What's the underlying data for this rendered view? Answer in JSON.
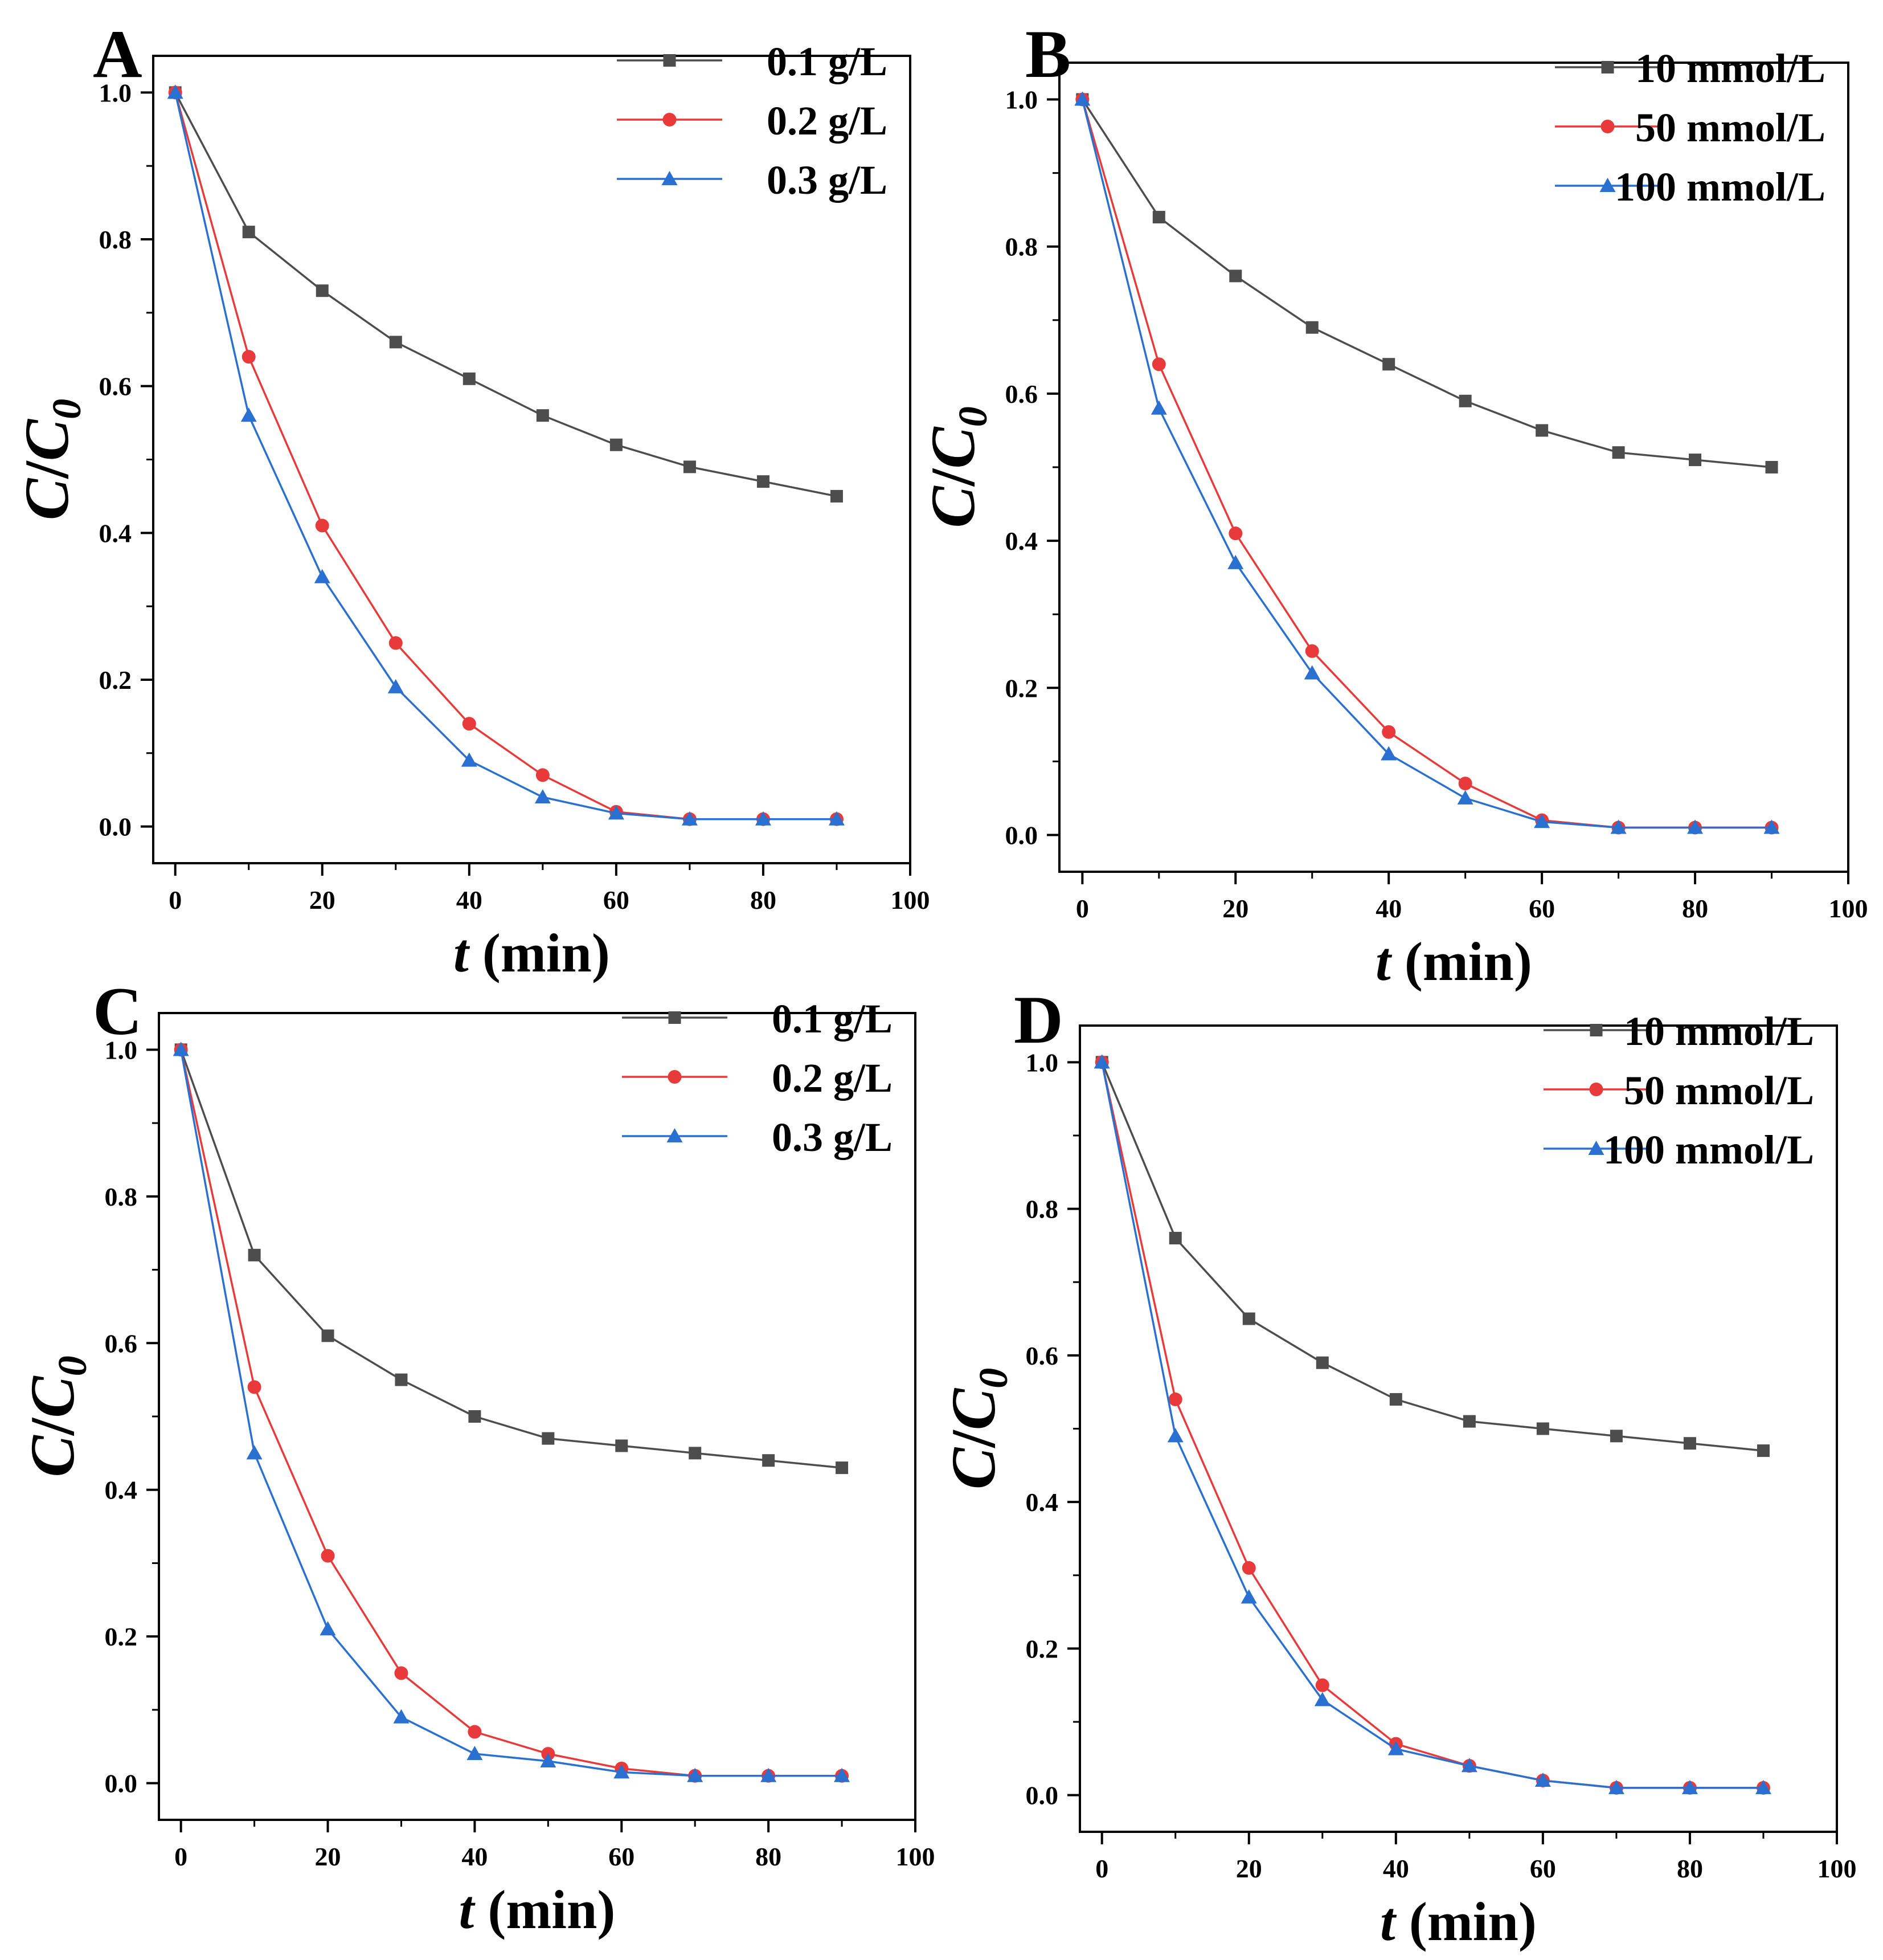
{
  "chart_data": [
    {
      "type": "line",
      "panel_label": "A",
      "xlabel_italic": "t",
      "xlabel_rest": " (min)",
      "ylabel_c": "C",
      "ylabel_slash": "/",
      "ylabel_c0": "C",
      "ylabel_sub": "0",
      "xlim": [
        -3,
        100
      ],
      "ylim": [
        -0.05,
        1.05
      ],
      "xticks": [
        0,
        20,
        40,
        60,
        80,
        100
      ],
      "yticks": [
        0.0,
        0.2,
        0.4,
        0.6,
        0.8,
        1.0
      ],
      "xtick_labels": [
        "0",
        "20",
        "40",
        "60",
        "80",
        "100"
      ],
      "ytick_labels": [
        "0.0",
        "0.2",
        "0.4",
        "0.6",
        "0.8",
        "1.0"
      ],
      "legend_position": "top-right",
      "grid": false,
      "x": [
        0,
        10,
        20,
        30,
        40,
        50,
        60,
        70,
        80,
        90
      ],
      "series": [
        {
          "name": "0.1 g/L",
          "color": "#4d4d4d",
          "marker": "square",
          "values": [
            1.0,
            0.81,
            0.73,
            0.66,
            0.61,
            0.56,
            0.52,
            0.49,
            0.47,
            0.45
          ]
        },
        {
          "name": "0.2 g/L",
          "color": "#e83a3a",
          "marker": "circle",
          "values": [
            1.0,
            0.64,
            0.41,
            0.25,
            0.14,
            0.07,
            0.02,
            0.01,
            0.01,
            0.01
          ]
        },
        {
          "name": "0.3 g/L",
          "color": "#2a70d0",
          "marker": "triangle",
          "values": [
            1.0,
            0.56,
            0.34,
            0.19,
            0.09,
            0.04,
            0.018,
            0.01,
            0.01,
            0.01
          ]
        }
      ]
    },
    {
      "type": "line",
      "panel_label": "B",
      "xlabel_italic": "t",
      "xlabel_rest": " (min)",
      "ylabel_c": "C",
      "ylabel_slash": "/",
      "ylabel_c0": "C",
      "ylabel_sub": "0",
      "xlim": [
        -3,
        100
      ],
      "ylim": [
        -0.05,
        1.05
      ],
      "xticks": [
        0,
        20,
        40,
        60,
        80,
        100
      ],
      "yticks": [
        0.0,
        0.2,
        0.4,
        0.6,
        0.8,
        1.0
      ],
      "xtick_labels": [
        "0",
        "20",
        "40",
        "60",
        "80",
        "100"
      ],
      "ytick_labels": [
        "0.0",
        "0.2",
        "0.4",
        "0.6",
        "0.8",
        "1.0"
      ],
      "legend_position": "top-right",
      "grid": false,
      "x": [
        0,
        10,
        20,
        30,
        40,
        50,
        60,
        70,
        80,
        90
      ],
      "series": [
        {
          "name": "10 mmol/L",
          "color": "#4d4d4d",
          "marker": "square",
          "values": [
            1.0,
            0.84,
            0.76,
            0.69,
            0.64,
            0.59,
            0.55,
            0.52,
            0.51,
            0.5
          ]
        },
        {
          "name": "50 mmol/L",
          "color": "#e83a3a",
          "marker": "circle",
          "values": [
            1.0,
            0.64,
            0.41,
            0.25,
            0.14,
            0.07,
            0.02,
            0.01,
            0.01,
            0.01
          ]
        },
        {
          "name": "100 mmol/L",
          "color": "#2a70d0",
          "marker": "triangle",
          "values": [
            1.0,
            0.58,
            0.37,
            0.22,
            0.11,
            0.05,
            0.018,
            0.01,
            0.01,
            0.01
          ]
        }
      ]
    },
    {
      "type": "line",
      "panel_label": "C",
      "xlabel_italic": "t",
      "xlabel_rest": " (min)",
      "ylabel_c": "C",
      "ylabel_slash": "/",
      "ylabel_c0": "C",
      "ylabel_sub": "0",
      "xlim": [
        -3,
        100
      ],
      "ylim": [
        -0.05,
        1.05
      ],
      "xticks": [
        0,
        20,
        40,
        60,
        80,
        100
      ],
      "yticks": [
        0.0,
        0.2,
        0.4,
        0.6,
        0.8,
        1.0
      ],
      "xtick_labels": [
        "0",
        "20",
        "40",
        "60",
        "80",
        "100"
      ],
      "ytick_labels": [
        "0.0",
        "0.2",
        "0.4",
        "0.6",
        "0.8",
        "1.0"
      ],
      "legend_position": "top-right",
      "grid": false,
      "x": [
        0,
        10,
        20,
        30,
        40,
        50,
        60,
        70,
        80,
        90
      ],
      "series": [
        {
          "name": "0.1 g/L",
          "color": "#4d4d4d",
          "marker": "square",
          "values": [
            1.0,
            0.72,
            0.61,
            0.55,
            0.5,
            0.47,
            0.46,
            0.45,
            0.44,
            0.43
          ]
        },
        {
          "name": "0.2 g/L",
          "color": "#e83a3a",
          "marker": "circle",
          "values": [
            1.0,
            0.54,
            0.31,
            0.15,
            0.07,
            0.04,
            0.02,
            0.01,
            0.01,
            0.01
          ]
        },
        {
          "name": "0.3 g/L",
          "color": "#2a70d0",
          "marker": "triangle",
          "values": [
            1.0,
            0.45,
            0.21,
            0.09,
            0.04,
            0.03,
            0.015,
            0.01,
            0.01,
            0.01
          ]
        }
      ]
    },
    {
      "type": "line",
      "panel_label": "D",
      "xlabel_italic": "t",
      "xlabel_rest": " (min)",
      "ylabel_c": "C",
      "ylabel_slash": "/",
      "ylabel_c0": "C",
      "ylabel_sub": "0",
      "xlim": [
        -3,
        100
      ],
      "ylim": [
        -0.05,
        1.05
      ],
      "xticks": [
        0,
        20,
        40,
        60,
        80,
        100
      ],
      "yticks": [
        0.0,
        0.2,
        0.4,
        0.6,
        0.8,
        1.0
      ],
      "xtick_labels": [
        "0",
        "20",
        "40",
        "60",
        "80",
        "100"
      ],
      "ytick_labels": [
        "0.0",
        "0.2",
        "0.4",
        "0.6",
        "0.8",
        "1.0"
      ],
      "legend_position": "top-right",
      "grid": false,
      "x": [
        0,
        10,
        20,
        30,
        40,
        50,
        60,
        70,
        80,
        90
      ],
      "series": [
        {
          "name": "10 mmol/L",
          "color": "#4d4d4d",
          "marker": "square",
          "values": [
            1.0,
            0.76,
            0.65,
            0.59,
            0.54,
            0.51,
            0.5,
            0.49,
            0.48,
            0.47
          ]
        },
        {
          "name": "50 mmol/L",
          "color": "#e83a3a",
          "marker": "circle",
          "values": [
            1.0,
            0.54,
            0.31,
            0.15,
            0.07,
            0.04,
            0.02,
            0.01,
            0.01,
            0.01
          ]
        },
        {
          "name": "100 mmol/L",
          "color": "#2a70d0",
          "marker": "triangle",
          "values": [
            1.0,
            0.49,
            0.27,
            0.13,
            0.063,
            0.04,
            0.02,
            0.01,
            0.01,
            0.01
          ]
        }
      ]
    }
  ]
}
